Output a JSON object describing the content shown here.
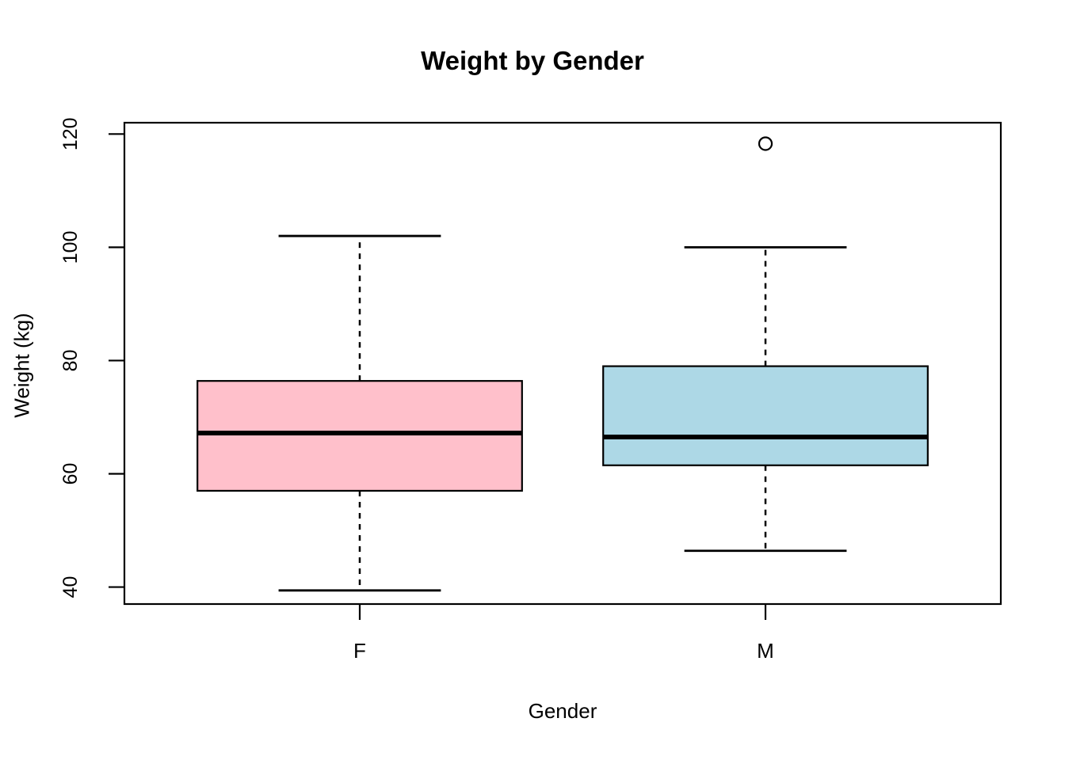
{
  "chart_data": {
    "type": "boxplot",
    "title": "Weight by Gender",
    "xlabel": "Gender",
    "ylabel": "Weight (kg)",
    "categories": [
      "F",
      "M"
    ],
    "y_ticks": [
      40,
      60,
      80,
      100,
      120
    ],
    "ylim": [
      37,
      122
    ],
    "xlim": [
      0.42,
      2.58
    ],
    "x_positions": [
      1,
      2
    ],
    "box_width": 0.8,
    "cap_width": 0.4,
    "grid": "off",
    "legend": "none",
    "series": [
      {
        "name": "F",
        "fill": "#FFC0CB",
        "whisker_low": 39.4,
        "q1": 57.0,
        "median": 67.2,
        "q3": 76.4,
        "whisker_high": 102.0,
        "outliers": []
      },
      {
        "name": "M",
        "fill": "#ADD8E6",
        "whisker_low": 46.4,
        "q1": 61.5,
        "median": 66.5,
        "q3": 79.0,
        "whisker_high": 100.0,
        "outliers": [
          118.3
        ]
      }
    ],
    "line_color": "#000000",
    "background_color": "#FFFFFF"
  }
}
